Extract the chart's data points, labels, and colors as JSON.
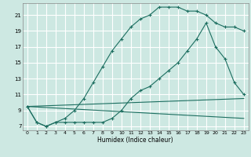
{
  "xlabel": "Humidex (Indice chaleur)",
  "bg_color": "#cde8e2",
  "grid_color": "#ffffff",
  "line_color": "#1c6e60",
  "xlim": [
    -0.5,
    23.5
  ],
  "ylim": [
    6.5,
    22.5
  ],
  "xticks": [
    0,
    1,
    2,
    3,
    4,
    5,
    6,
    7,
    8,
    9,
    10,
    11,
    12,
    13,
    14,
    15,
    16,
    17,
    18,
    19,
    20,
    21,
    22,
    23
  ],
  "yticks": [
    7,
    9,
    11,
    13,
    15,
    17,
    19,
    21
  ],
  "series": [
    {
      "x": [
        0,
        1,
        2,
        3,
        4,
        5,
        6,
        7,
        8,
        9,
        10,
        11,
        12,
        13,
        14,
        15,
        16,
        17,
        18,
        19,
        20,
        21,
        22,
        23
      ],
      "y": [
        9.5,
        7.5,
        7.0,
        7.5,
        8.0,
        9.0,
        10.5,
        12.5,
        14.5,
        16.5,
        18.0,
        19.5,
        20.5,
        21.0,
        22.0,
        22.0,
        22.0,
        21.5,
        21.5,
        21.0,
        20.0,
        19.5,
        19.5,
        19.0
      ],
      "marker": true
    },
    {
      "x": [
        0,
        1,
        2,
        3,
        4,
        5,
        6,
        7,
        8,
        9,
        10,
        11,
        12,
        13,
        14,
        15,
        16,
        17,
        18,
        19,
        20,
        21,
        22,
        23
      ],
      "y": [
        9.5,
        7.5,
        7.0,
        7.5,
        7.5,
        7.5,
        7.5,
        7.5,
        7.5,
        8.0,
        9.0,
        10.5,
        11.5,
        12.0,
        13.0,
        14.0,
        15.0,
        16.5,
        18.0,
        20.0,
        17.0,
        15.5,
        12.5,
        11.0
      ],
      "marker": true
    },
    {
      "x": [
        0,
        23
      ],
      "y": [
        9.5,
        10.5
      ],
      "marker": false
    },
    {
      "x": [
        0,
        23
      ],
      "y": [
        9.5,
        8.0
      ],
      "marker": false
    }
  ]
}
